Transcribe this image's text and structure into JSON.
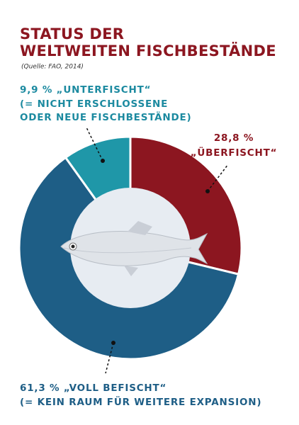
{
  "chart_data": {
    "type": "pie",
    "title": [
      "STATUS DER",
      "WELTWEITEN FISCHBESTÄNDE"
    ],
    "subtitle": "(Quelle: FAO, 2014)",
    "categories": [
      "„ÜBERFISCHT“",
      "„VOLL BEFISCHT“",
      "„UNTERFISCHT“"
    ],
    "values": [
      28.8,
      61.3,
      9.9
    ],
    "value_labels": [
      "28,8 %",
      "61,3 %",
      "9,9 %"
    ],
    "colors": [
      "#8c1620",
      "#1e5e86",
      "#1f97a8"
    ],
    "notes": [
      [],
      [
        "(= KEIN RAUM FÜR WEITERE EXPANSION)"
      ],
      [
        "(= NICHT ERSCHLOSSENE",
        "ODER NEUE FISCHBESTÄNDE)"
      ]
    ]
  }
}
